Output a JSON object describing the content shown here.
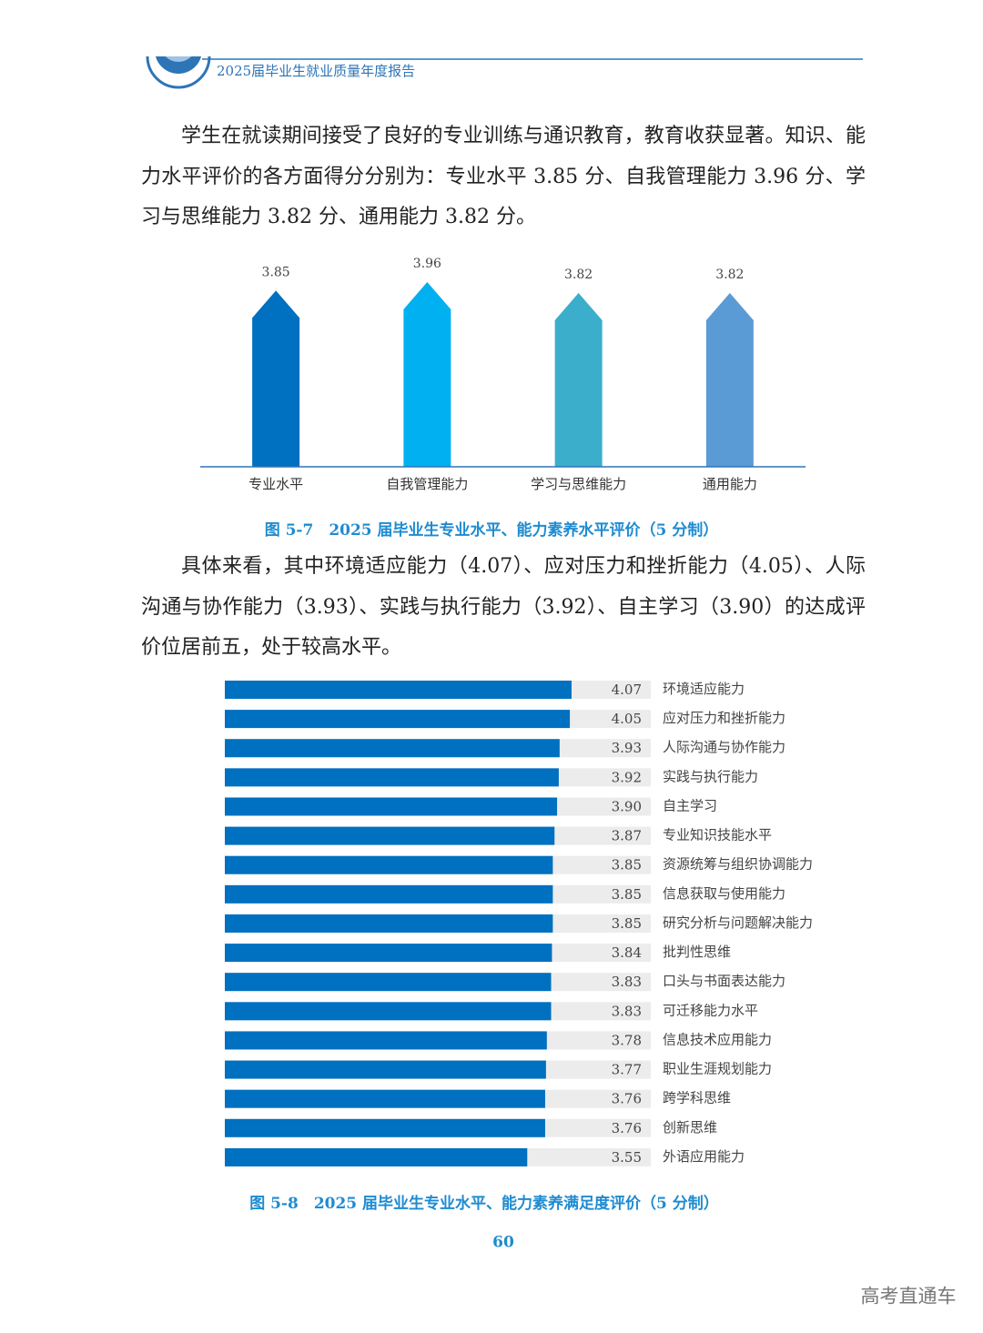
{
  "header": {
    "title": "2025届毕业生就业质量年度报告"
  },
  "paragraphs": [
    "学生在就读期间接受了良好的专业训练与通识教育，教育收获显著。知识、能力水平评价的各方面得分分别为：专业水平 3.85 分、自我管理能力 3.96 分、学习与思维能力 3.82 分、通用能力 3.82 分。",
    "具体来看，其中环境适应能力（4.07）、应对压力和挫折能力（4.05）、人际沟通与协作能力（3.93）、实践与执行能力（3.92）、自主学习（3.90）的达成评价位居前五，处于较高水平。"
  ],
  "chart_data": [
    {
      "type": "bar",
      "caption": "图 5-7　2025 届毕业生专业水平、能力素养水平评价（5 分制）",
      "categories": [
        "专业水平",
        "自我管理能力",
        "学习与思维能力",
        "通用能力"
      ],
      "values": [
        3.85,
        3.96,
        3.82,
        3.82
      ],
      "colors": [
        "#0070c0",
        "#00b0f0",
        "#3aaecb",
        "#5b9bd5"
      ],
      "ylim": [
        1.6,
        4.25
      ]
    },
    {
      "type": "barh",
      "caption": "图 5-8　2025 届毕业生专业水平、能力素养满足度评价（5 分制）",
      "categories": [
        "环境适应能力",
        "应对压力和挫折能力",
        "人际沟通与协作能力",
        "实践与执行能力",
        "自主学习",
        "专业知识技能水平",
        "资源统筹与组织协调能力",
        "信息获取与使用能力",
        "研究分析与问题解决能力",
        "批判性思维",
        "口头与书面表达能力",
        "可迁移能力水平",
        "信息技术应用能力",
        "职业生涯规划能力",
        "跨学科思维",
        "创新思维",
        "外语应用能力"
      ],
      "values": [
        4.07,
        4.05,
        3.93,
        3.92,
        3.9,
        3.87,
        3.85,
        3.85,
        3.85,
        3.84,
        3.83,
        3.83,
        3.78,
        3.77,
        3.76,
        3.76,
        3.55
      ],
      "value_labels": [
        "4.07",
        "4.05",
        "3.93",
        "3.92",
        "3.90",
        "3.87",
        "3.85",
        "3.85",
        "3.85",
        "3.84",
        "3.83",
        "3.83",
        "3.78",
        "3.77",
        "3.76",
        "3.76",
        "3.55"
      ],
      "color": "#0070c0",
      "track_color": "#ececec",
      "xlim": [
        0,
        5
      ]
    }
  ],
  "page_number": "60",
  "watermark": "高考直通车"
}
